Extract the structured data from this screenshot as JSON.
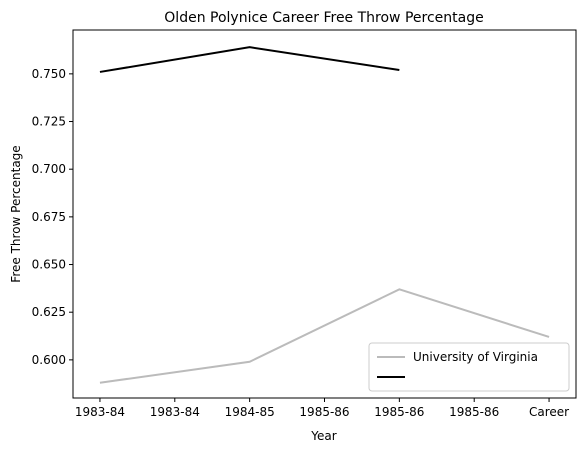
{
  "chart_data": {
    "type": "line",
    "title": "Olden Polynice Career Free Throw Percentage",
    "xlabel": "Year",
    "ylabel": "Free Throw Percentage",
    "xlim": [
      -0.36,
      6.36
    ],
    "xticks": [
      {
        "value": 0,
        "label": "1983-84"
      },
      {
        "value": 1,
        "label": "1983-84"
      },
      {
        "value": 2,
        "label": "1984-85"
      },
      {
        "value": 3,
        "label": "1985-86"
      },
      {
        "value": 4,
        "label": "1985-86"
      },
      {
        "value": 5,
        "label": "1985-86"
      },
      {
        "value": 6,
        "label": "Career"
      }
    ],
    "ylim": [
      0.58,
      0.773
    ],
    "yticks": [
      {
        "value": 0.6,
        "label": "0.600"
      },
      {
        "value": 0.625,
        "label": "0.625"
      },
      {
        "value": 0.65,
        "label": "0.650"
      },
      {
        "value": 0.675,
        "label": "0.675"
      },
      {
        "value": 0.7,
        "label": "0.700"
      },
      {
        "value": 0.725,
        "label": "0.725"
      },
      {
        "value": 0.75,
        "label": "0.750"
      }
    ],
    "legend": "lower right",
    "series": [
      {
        "name": "University of Virginia",
        "color": "#bbbbbb",
        "x": [
          0,
          2,
          4,
          6
        ],
        "values": [
          0.588,
          0.599,
          0.637,
          0.612
        ]
      },
      {
        "color": "#000000",
        "x": [
          0,
          2,
          4
        ],
        "values": [
          0.751,
          0.764,
          0.752
        ]
      }
    ]
  }
}
